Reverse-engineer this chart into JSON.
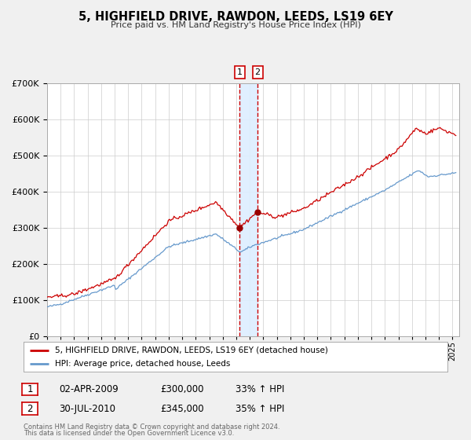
{
  "title": "5, HIGHFIELD DRIVE, RAWDON, LEEDS, LS19 6EY",
  "subtitle": "Price paid vs. HM Land Registry's House Price Index (HPI)",
  "legend_entry1": "5, HIGHFIELD DRIVE, RAWDON, LEEDS, LS19 6EY (detached house)",
  "legend_entry2": "HPI: Average price, detached house, Leeds",
  "transaction1_date": "02-APR-2009",
  "transaction1_price": 300000,
  "transaction1_year": 2009.25,
  "transaction1_label": "1",
  "transaction1_pct": "33% ↑ HPI",
  "transaction2_date": "30-JUL-2010",
  "transaction2_price": 345000,
  "transaction2_year": 2010.58,
  "transaction2_label": "2",
  "transaction2_pct": "35% ↑ HPI",
  "footer1": "Contains HM Land Registry data © Crown copyright and database right 2024.",
  "footer2": "This data is licensed under the Open Government Licence v3.0.",
  "line1_color": "#cc0000",
  "line2_color": "#6699cc",
  "marker_color": "#990000",
  "vspan_color": "#ddeeff",
  "vline_color": "#cc0000",
  "background_color": "#f0f0f0",
  "plot_bg_color": "#ffffff",
  "grid_color": "#cccccc",
  "ylim_min": 0,
  "ylim_max": 700000,
  "xlim_start": 1995.0,
  "xlim_end": 2025.5
}
